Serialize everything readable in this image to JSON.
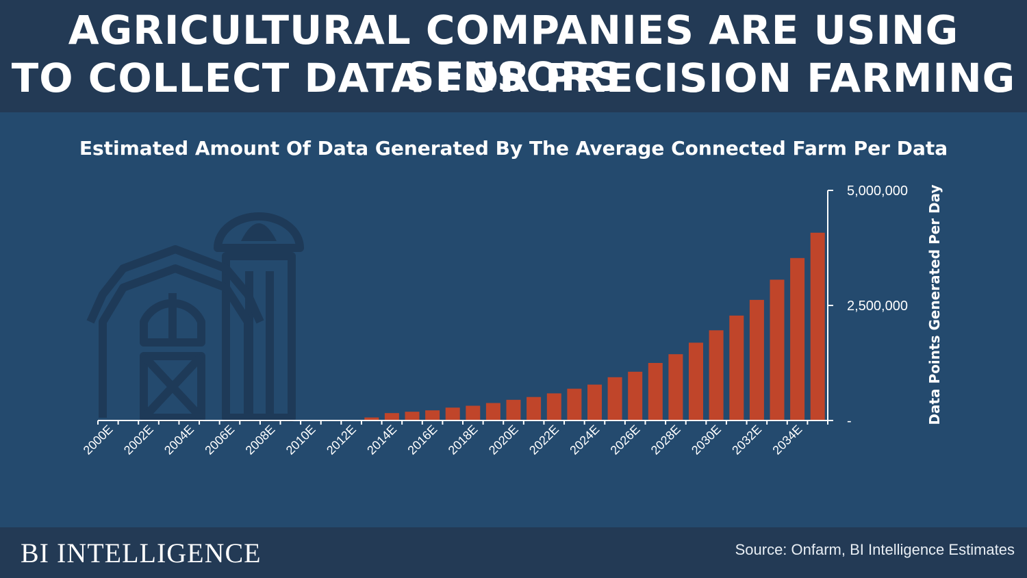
{
  "header": {
    "line1": "AGRICULTURAL COMPANIES ARE USING SENSORS",
    "line2": "TO COLLECT DATA FOR PRECISION FARMING"
  },
  "icon": "barn-silo-icon",
  "colors": {
    "bar": "#c0452a",
    "background": "#244a6e",
    "header": "#233a55",
    "axis": "#ffffff",
    "icon": "#1e3a58"
  },
  "chart_data": {
    "type": "bar",
    "title": "Estimated Amount Of Data Generated By The Average Connected Farm Per Data",
    "xlabel": "",
    "ylabel": "Data Points Generated Per Day",
    "ylim": [
      0,
      5000000
    ],
    "y_ticks": [
      0,
      2500000,
      5000000
    ],
    "y_tick_labels": [
      "-",
      "2,500,000",
      "5,000,000"
    ],
    "y_axis_position": "right",
    "grid": false,
    "categories": [
      "2000E",
      "2001E",
      "2002E",
      "2003E",
      "2004E",
      "2005E",
      "2006E",
      "2007E",
      "2008E",
      "2009E",
      "2010E",
      "2011E",
      "2012E",
      "2013E",
      "2014E",
      "2015E",
      "2016E",
      "2017E",
      "2018E",
      "2019E",
      "2020E",
      "2021E",
      "2022E",
      "2023E",
      "2024E",
      "2025E",
      "2026E",
      "2027E",
      "2028E",
      "2029E",
      "2030E",
      "2031E",
      "2032E",
      "2033E",
      "2034E",
      "2035E"
    ],
    "x_tick_labels_shown": [
      "2000E",
      "2002E",
      "2004E",
      "2006E",
      "2008E",
      "2010E",
      "2012E",
      "2014E",
      "2016E",
      "2018E",
      "2020E",
      "2022E",
      "2024E",
      "2026E",
      "2028E",
      "2030E",
      "2032E",
      "2034E"
    ],
    "values": [
      0,
      0,
      0,
      0,
      0,
      0,
      0,
      0,
      0,
      0,
      0,
      0,
      0,
      65000,
      160000,
      190000,
      220000,
      280000,
      320000,
      380000,
      450000,
      510000,
      590000,
      690000,
      780000,
      940000,
      1060000,
      1250000,
      1440000,
      1690000,
      1960000,
      2280000,
      2620000,
      3060000,
      3530000,
      4080000
    ]
  },
  "footer": {
    "brand": "BI INTELLIGENCE",
    "source": "Source: Onfarm, BI Intelligence Estimates"
  }
}
